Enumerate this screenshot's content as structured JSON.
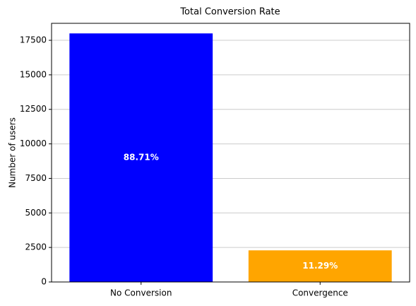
{
  "chart_data": {
    "type": "bar",
    "title": "Total Conversion Rate",
    "ylabel": "Number of users",
    "categories": [
      "No Conversion",
      "Convergence"
    ],
    "values": [
      18000,
      2290
    ],
    "colors": [
      "#0000ff",
      "#ffa500"
    ],
    "annotations": [
      "88.71%",
      "11.29%"
    ],
    "ylim": [
      0,
      18730
    ],
    "yticks": [
      0,
      2500,
      5000,
      7500,
      10000,
      12500,
      15000,
      17500
    ],
    "grid": true
  }
}
